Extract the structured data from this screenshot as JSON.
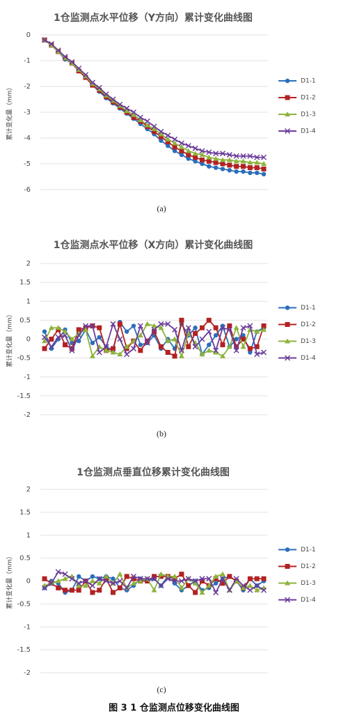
{
  "chart_data": [
    {
      "type": "line",
      "title": "1仓监测点水平位移（Y方向）累计变化曲线图",
      "y_label": "累计变化量（mm）",
      "caption": "(a)",
      "ylim": [
        -6,
        0
      ],
      "yticks": [
        0,
        -1,
        -2,
        -3,
        -4,
        -5,
        -6
      ],
      "grid": true,
      "legend": "right",
      "series": [
        {
          "name": "D1-1",
          "color": "#2a6ebb",
          "marker": "circle",
          "values": [
            -0.2,
            -0.4,
            -0.65,
            -0.95,
            -1.1,
            -1.4,
            -1.65,
            -1.95,
            -2.2,
            -2.45,
            -2.65,
            -2.85,
            -3.05,
            -3.25,
            -3.45,
            -3.65,
            -3.85,
            -4.1,
            -4.3,
            -4.5,
            -4.65,
            -4.8,
            -4.9,
            -5.0,
            -5.1,
            -5.15,
            -5.2,
            -5.25,
            -5.3,
            -5.3,
            -5.35,
            -5.35,
            -5.4
          ]
        },
        {
          "name": "D1-2",
          "color": "#b22222",
          "marker": "square",
          "values": [
            -0.2,
            -0.4,
            -0.65,
            -0.9,
            -1.1,
            -1.4,
            -1.65,
            -1.95,
            -2.15,
            -2.4,
            -2.6,
            -2.8,
            -3.0,
            -3.2,
            -3.35,
            -3.55,
            -3.75,
            -3.95,
            -4.15,
            -4.35,
            -4.5,
            -4.65,
            -4.75,
            -4.85,
            -4.9,
            -4.95,
            -5.0,
            -5.05,
            -5.1,
            -5.1,
            -5.15,
            -5.15,
            -5.2
          ]
        },
        {
          "name": "D1-3",
          "color": "#8db33b",
          "marker": "triangle",
          "values": [
            -0.2,
            -0.4,
            -0.65,
            -0.9,
            -1.1,
            -1.35,
            -1.6,
            -1.9,
            -2.1,
            -2.35,
            -2.55,
            -2.75,
            -2.95,
            -3.1,
            -3.3,
            -3.5,
            -3.65,
            -3.85,
            -4.05,
            -4.2,
            -4.35,
            -4.5,
            -4.6,
            -4.65,
            -4.75,
            -4.8,
            -4.85,
            -4.85,
            -4.9,
            -4.9,
            -4.95,
            -4.95,
            -5.0
          ]
        },
        {
          "name": "D1-4",
          "color": "#6a3d9a",
          "marker": "x",
          "values": [
            -0.2,
            -0.35,
            -0.6,
            -0.85,
            -1.05,
            -1.3,
            -1.55,
            -1.85,
            -2.05,
            -2.3,
            -2.5,
            -2.7,
            -2.85,
            -3.0,
            -3.2,
            -3.35,
            -3.55,
            -3.75,
            -3.9,
            -4.05,
            -4.2,
            -4.3,
            -4.4,
            -4.5,
            -4.55,
            -4.6,
            -4.6,
            -4.65,
            -4.7,
            -4.7,
            -4.7,
            -4.75,
            -4.75
          ]
        }
      ]
    },
    {
      "type": "line",
      "title": "1仓监测点水平位移（X方向）累计变化曲线图",
      "y_label": "累计变化量（mm）",
      "caption": "(b)",
      "ylim": [
        -2,
        2
      ],
      "yticks": [
        2,
        1.5,
        1,
        0.5,
        0,
        -0.5,
        -1,
        -1.5,
        -2
      ],
      "grid": true,
      "legend": "right",
      "series": [
        {
          "name": "D1-1",
          "color": "#2a6ebb",
          "marker": "circle",
          "values": [
            0.2,
            -0.25,
            0.0,
            0.25,
            -0.1,
            -0.05,
            0.25,
            -0.1,
            0.05,
            -0.2,
            -0.3,
            0.45,
            0.2,
            0.35,
            -0.15,
            -0.1,
            0.1,
            -0.25,
            0.0,
            -0.25,
            0.4,
            0.1,
            0.3,
            -0.4,
            -0.15,
            0.1,
            0.35,
            -0.2,
            0.0,
            0.1,
            -0.35,
            0.2,
            0.3
          ]
        },
        {
          "name": "D1-2",
          "color": "#b22222",
          "marker": "square",
          "values": [
            -0.25,
            0.0,
            0.25,
            -0.15,
            -0.25,
            0.25,
            0.3,
            0.35,
            0.3,
            -0.3,
            -0.25,
            0.4,
            -0.25,
            -0.05,
            -0.3,
            -0.05,
            0.2,
            -0.2,
            -0.35,
            -0.45,
            0.5,
            -0.2,
            0.15,
            0.3,
            0.5,
            0.3,
            -0.15,
            0.35,
            -0.2,
            0.0,
            -0.25,
            -0.2,
            0.35
          ]
        },
        {
          "name": "D1-3",
          "color": "#8db33b",
          "marker": "triangle",
          "values": [
            -0.05,
            0.3,
            0.3,
            0.2,
            0.0,
            0.15,
            0.25,
            -0.45,
            -0.2,
            -0.3,
            -0.35,
            -0.4,
            -0.2,
            -0.05,
            0.1,
            0.4,
            0.35,
            0.3,
            -0.05,
            0.0,
            -0.45,
            0.15,
            -0.1,
            -0.4,
            -0.3,
            -0.35,
            -0.45,
            -0.2,
            0.3,
            -0.2,
            0.25,
            0.2,
            0.25
          ]
        },
        {
          "name": "D1-4",
          "color": "#6a3d9a",
          "marker": "x",
          "values": [
            0.05,
            -0.2,
            0.05,
            0.1,
            -0.3,
            0.1,
            0.35,
            0.35,
            -0.35,
            -0.2,
            0.4,
            0.0,
            -0.4,
            -0.25,
            0.35,
            -0.1,
            0.25,
            0.4,
            0.4,
            0.25,
            -0.3,
            0.3,
            -0.2,
            0.0,
            0.2,
            -0.3,
            0.3,
            0.25,
            -0.3,
            0.3,
            0.35,
            -0.4,
            -0.35
          ]
        }
      ]
    },
    {
      "type": "line",
      "title": "1仓监测点垂直位移累计变化曲线图",
      "y_label": "累计变化量（mm）",
      "caption": "(c)",
      "ylim": [
        -2,
        2
      ],
      "yticks": [
        2,
        1.5,
        1,
        0.5,
        0,
        -0.5,
        -1,
        -1.5,
        -2
      ],
      "grid": true,
      "legend": "right",
      "series": [
        {
          "name": "D1-1",
          "color": "#2a6ebb",
          "marker": "circle",
          "values": [
            -0.15,
            0.0,
            -0.05,
            -0.25,
            -0.2,
            0.1,
            0.0,
            0.1,
            0.05,
            0.1,
            0.05,
            -0.15,
            -0.2,
            -0.1,
            0.05,
            0.0,
            0.05,
            -0.1,
            0.1,
            -0.05,
            -0.2,
            -0.1,
            0.0,
            -0.2,
            -0.15,
            -0.05,
            0.05,
            0.1,
            0.0,
            -0.2,
            0.05,
            -0.1,
            0.0
          ]
        },
        {
          "name": "D1-2",
          "color": "#b22222",
          "marker": "square",
          "values": [
            0.05,
            -0.05,
            -0.15,
            -0.2,
            -0.2,
            -0.2,
            0.0,
            -0.25,
            -0.2,
            0.05,
            -0.25,
            -0.15,
            0.1,
            0.05,
            0.0,
            0.0,
            0.1,
            0.1,
            0.1,
            0.05,
            0.15,
            -0.1,
            -0.25,
            0.0,
            -0.1,
            0.05,
            -0.05,
            0.1,
            0.0,
            -0.15,
            0.05,
            0.05,
            0.05
          ]
        },
        {
          "name": "D1-3",
          "color": "#8db33b",
          "marker": "triangle",
          "values": [
            -0.1,
            -0.05,
            0.0,
            0.05,
            0.1,
            -0.1,
            -0.1,
            0.0,
            -0.05,
            0.1,
            -0.05,
            0.15,
            -0.15,
            -0.05,
            0.0,
            0.05,
            -0.2,
            0.15,
            0.1,
            0.1,
            -0.15,
            0.05,
            -0.05,
            -0.25,
            -0.1,
            0.1,
            0.15,
            -0.2,
            0.0,
            -0.15,
            -0.1,
            -0.2,
            -0.15
          ]
        },
        {
          "name": "D1-4",
          "color": "#6a3d9a",
          "marker": "x",
          "values": [
            -0.15,
            -0.05,
            0.2,
            0.15,
            0.05,
            -0.05,
            0.0,
            -0.1,
            0.05,
            0.0,
            -0.05,
            0.0,
            -0.15,
            0.1,
            0.05,
            0.05,
            0.05,
            -0.1,
            0.05,
            0.0,
            0.0,
            0.05,
            0.0,
            0.05,
            0.05,
            -0.25,
            0.05,
            -0.2,
            0.05,
            -0.1,
            -0.2,
            -0.1,
            -0.2
          ]
        }
      ]
    }
  ],
  "figure_caption": "图 3  1 仓监测点位移变化曲线图"
}
